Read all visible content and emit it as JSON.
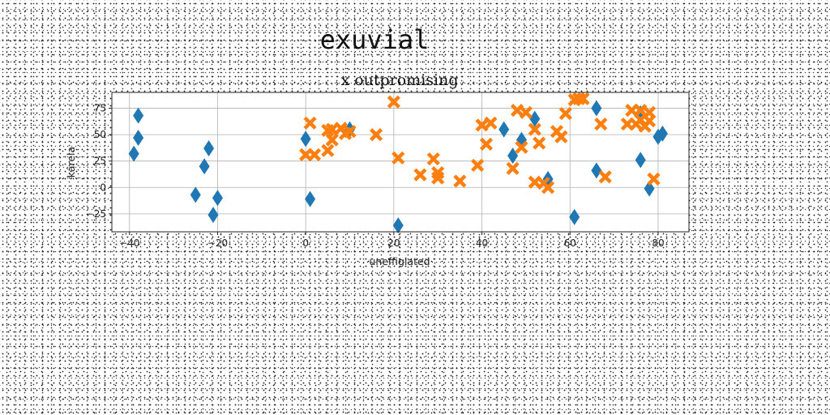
{
  "figure_title": "exuvial",
  "colors": {
    "series_a": "#1f77b4",
    "series_b": "#ff7f0e",
    "grid": "#b0b0b0"
  },
  "chart_data": {
    "type": "scatter",
    "title": "x outpromising",
    "xlabel": "uneffigiated",
    "ylabel": "kárela",
    "xlim": [
      -44,
      87
    ],
    "ylim": [
      -42,
      90
    ],
    "xticks": [
      -40,
      -20,
      0,
      20,
      40,
      60,
      80
    ],
    "yticks": [
      -25,
      0,
      25,
      50,
      75
    ],
    "grid": true,
    "series": [
      {
        "marker": "diamond",
        "color": "#1f77b4",
        "points": [
          [
            -38,
            68
          ],
          [
            -38,
            47
          ],
          [
            -39,
            32
          ],
          [
            -22,
            37
          ],
          [
            -23,
            20
          ],
          [
            -25,
            -7
          ],
          [
            -20,
            -10
          ],
          [
            -21,
            -26
          ],
          [
            0,
            46
          ],
          [
            1,
            -11
          ],
          [
            10,
            55
          ],
          [
            21,
            -36
          ],
          [
            45,
            55
          ],
          [
            47,
            30
          ],
          [
            49,
            45
          ],
          [
            52,
            65
          ],
          [
            55,
            8
          ],
          [
            61,
            -28
          ],
          [
            66,
            75
          ],
          [
            66,
            16
          ],
          [
            76,
            70
          ],
          [
            76,
            26
          ],
          [
            78,
            -1
          ],
          [
            80,
            48
          ],
          [
            81,
            51
          ]
        ]
      },
      {
        "marker": "x",
        "color": "#ff7f0e",
        "points": [
          [
            1,
            61
          ],
          [
            0,
            31
          ],
          [
            2,
            31
          ],
          [
            5,
            35
          ],
          [
            5,
            54
          ],
          [
            6,
            45
          ],
          [
            6,
            55
          ],
          [
            8,
            56
          ],
          [
            9,
            51
          ],
          [
            10,
            53
          ],
          [
            16,
            50
          ],
          [
            20,
            81
          ],
          [
            21,
            28
          ],
          [
            26,
            12
          ],
          [
            29,
            27
          ],
          [
            30,
            14
          ],
          [
            30,
            9
          ],
          [
            35,
            6
          ],
          [
            39,
            21
          ],
          [
            40,
            59
          ],
          [
            41,
            41
          ],
          [
            42,
            61
          ],
          [
            47,
            18
          ],
          [
            48,
            73
          ],
          [
            49,
            38
          ],
          [
            50,
            71
          ],
          [
            52,
            55
          ],
          [
            52,
            5
          ],
          [
            53,
            42
          ],
          [
            54,
            4
          ],
          [
            55,
            0
          ],
          [
            57,
            53
          ],
          [
            58,
            48
          ],
          [
            59,
            70
          ],
          [
            61,
            83
          ],
          [
            62,
            84
          ],
          [
            63,
            84
          ],
          [
            67,
            60
          ],
          [
            68,
            10
          ],
          [
            73,
            60
          ],
          [
            74,
            73
          ],
          [
            75,
            60
          ],
          [
            76,
            73
          ],
          [
            76,
            64
          ],
          [
            77,
            58
          ],
          [
            78,
            63
          ],
          [
            78,
            71
          ],
          [
            79,
            8
          ]
        ]
      }
    ]
  }
}
